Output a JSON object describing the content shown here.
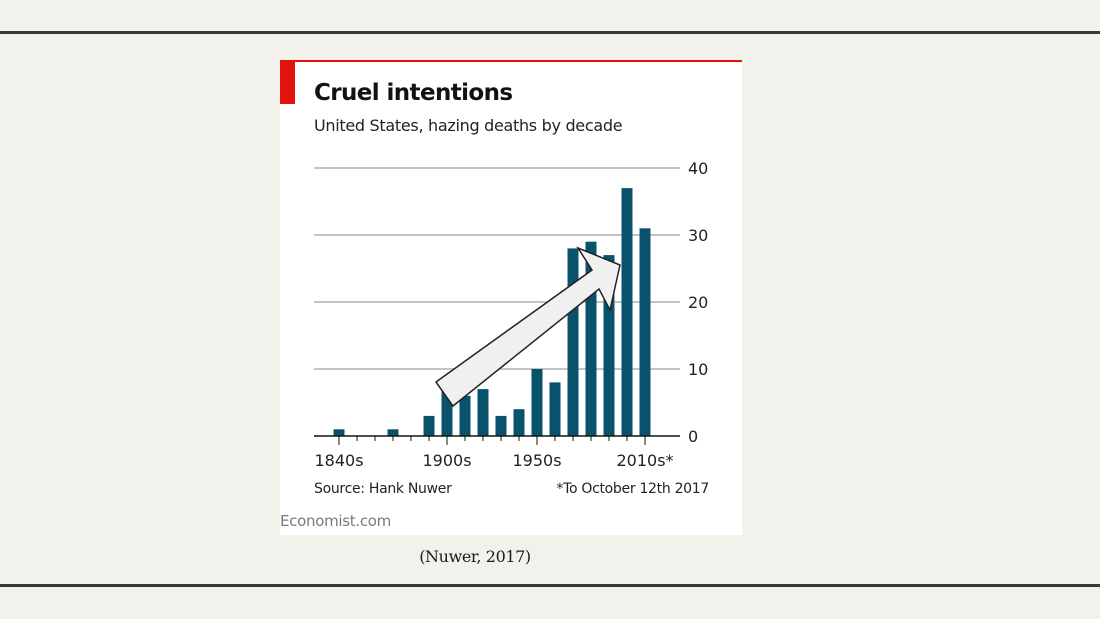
{
  "figure": {
    "title": "Cruel intentions",
    "subtitle": "United States, hazing deaths by decade",
    "source": "Source: Hank Nuwer",
    "footnote": "*To October 12th 2017",
    "brand": "Economist.com",
    "caption": "(Nuwer, 2017)"
  },
  "chart_data": {
    "type": "bar",
    "categories": [
      "1840s",
      "1850s",
      "1860s",
      "1870s",
      "1880s",
      "1890s",
      "1900s",
      "1910s",
      "1920s",
      "1930s",
      "1940s",
      "1950s",
      "1960s",
      "1970s",
      "1980s",
      "1990s",
      "2000s",
      "2010s*"
    ],
    "values": [
      1,
      0,
      0,
      1,
      0,
      3,
      7,
      6,
      7,
      3,
      4,
      10,
      8,
      28,
      29,
      27,
      37,
      31
    ],
    "x_tick_labels": [
      "1840s",
      "1900s",
      "1950s",
      "2010s*"
    ],
    "y_ticks": [
      0,
      10,
      20,
      30,
      40
    ],
    "ylim": [
      0,
      40
    ],
    "grid": true,
    "y_axis_side": "right",
    "colors": {
      "bars": "#08536b",
      "grid": "#c4c4c4",
      "axis": "#121212",
      "arrow_fill": "#f0f0f0",
      "arrow_stroke": "#222222"
    },
    "annotation": "upward arrow drawn over bars"
  }
}
